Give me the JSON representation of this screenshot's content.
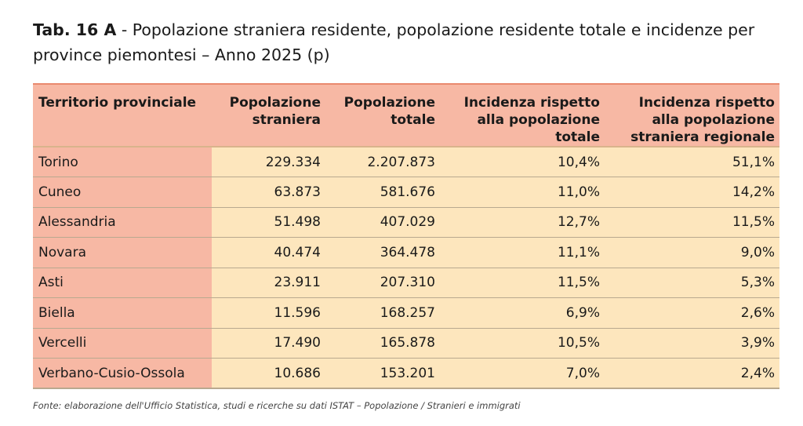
{
  "title": {
    "tab_label": "Tab. 16 A",
    "separator": " - ",
    "text": "Popolazione straniera residente, popolazione residente totale e incidenze per province piemontesi – Anno 2025 (p)"
  },
  "table": {
    "headers": [
      "Territorio provinciale",
      "Popolazione straniera",
      "Popolazione totale",
      "Incidenza rispetto alla popolazione totale",
      "Incidenza rispetto alla popolazione straniera regionale"
    ],
    "rows": [
      [
        "Torino",
        "229.334",
        "2.207.873",
        "10,4%",
        "51,1%"
      ],
      [
        "Cuneo",
        "63.873",
        "581.676",
        "11,0%",
        "14,2%"
      ],
      [
        "Alessandria",
        "51.498",
        "407.029",
        "12,7%",
        "11,5%"
      ],
      [
        "Novara",
        "40.474",
        "364.478",
        "11,1%",
        "9,0%"
      ],
      [
        "Asti",
        "23.911",
        "207.310",
        "11,5%",
        "5,3%"
      ],
      [
        "Biella",
        "11.596",
        "168.257",
        "6,9%",
        "2,6%"
      ],
      [
        "Vercelli",
        "17.490",
        "165.878",
        "10,5%",
        "3,9%"
      ],
      [
        "Verbano-Cusio-Ossola",
        "10.686",
        "153.201",
        "7,0%",
        "2,4%"
      ]
    ]
  },
  "footer": {
    "source": "Fonte: elaborazione dell'Ufficio Statistica, studi e ricerche su dati ISTAT – Popolazione / Stranieri e immigrati"
  },
  "colors": {
    "header_bg": "#f7b8a4",
    "first_column_bg": "#f7b8a4",
    "value_cell_bg": "#fde6bd"
  }
}
